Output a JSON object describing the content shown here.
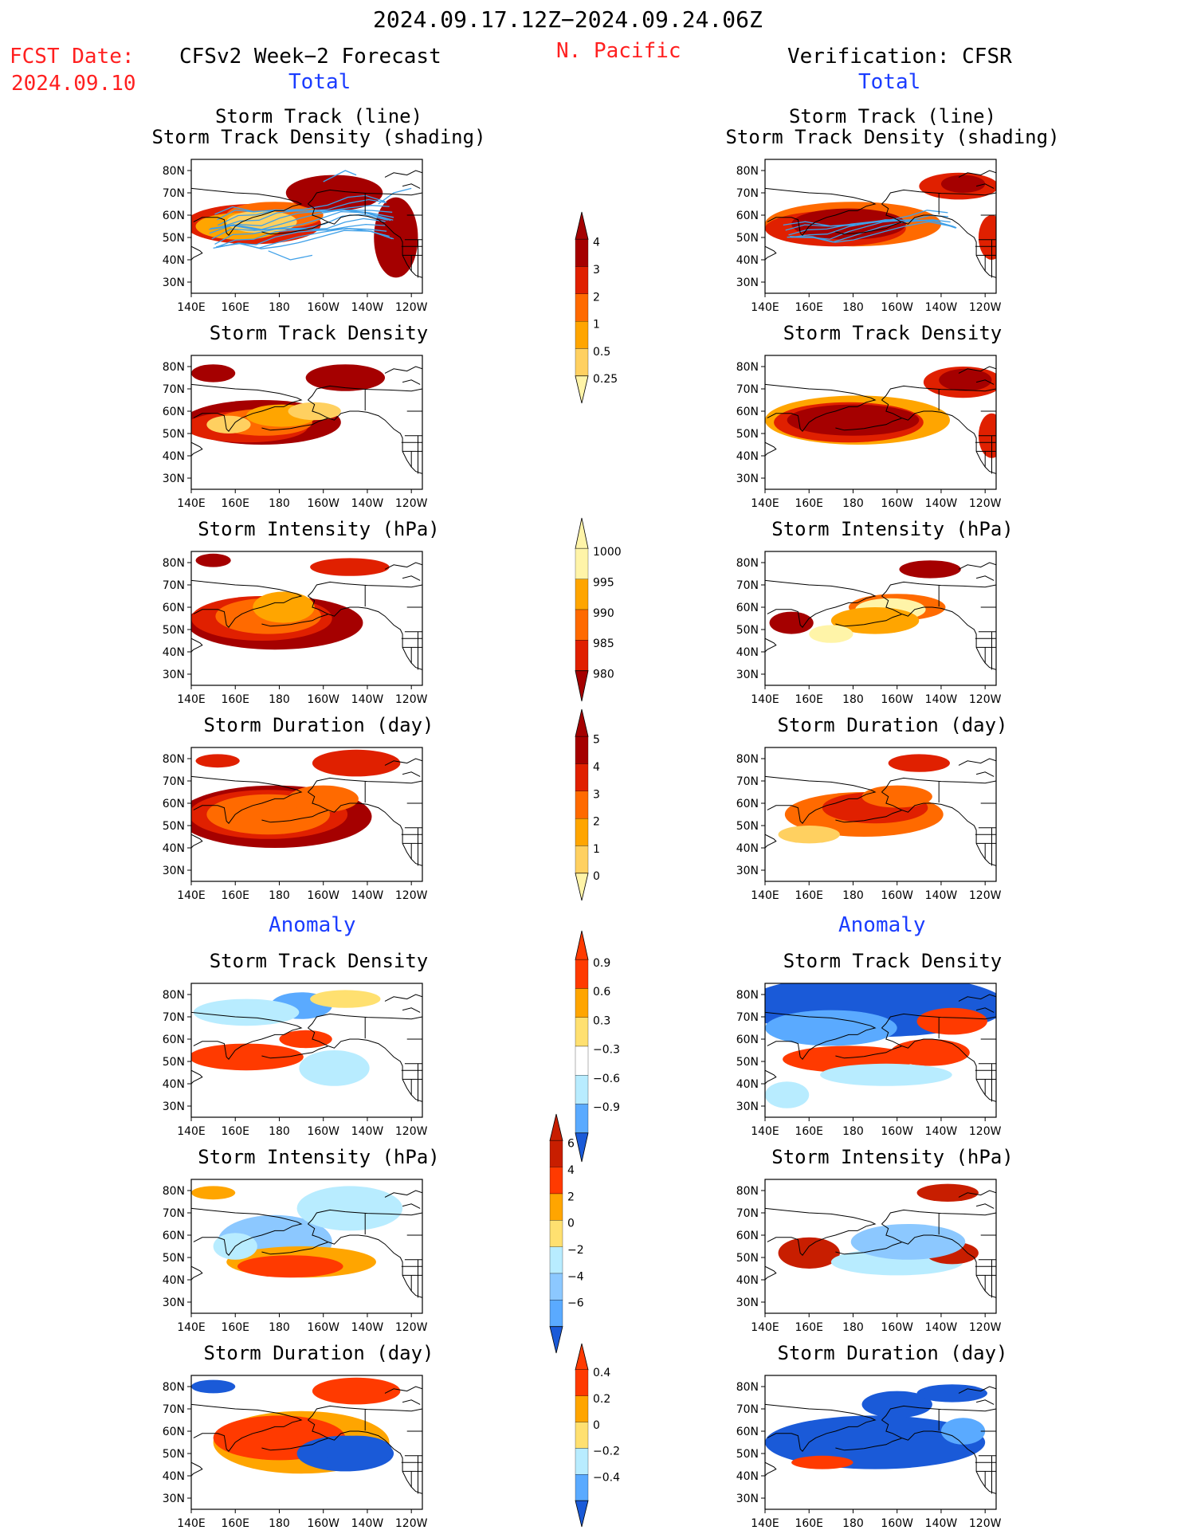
{
  "header": {
    "period": "2024.09.17.12Z−2024.09.24.06Z",
    "fcst_label": "FCST Date:",
    "fcst_date": "2024.09.10",
    "left_title": "CFSv2 Week−2 Forecast",
    "region": "N. Pacific",
    "right_title": "Verification: CFSR",
    "total_label": "Total",
    "anomaly_label": "Anomaly"
  },
  "chart_data": [
    {
      "type": "heatmap",
      "panel": "forecast-total-track-line",
      "title": [
        "Storm Track (line)",
        "Storm Track Density (shading)"
      ],
      "overlay": "storm tracks (lines)",
      "x_ticks": [
        "140E",
        "160E",
        "180",
        "160W",
        "140W",
        "120W"
      ],
      "y_ticks": [
        "30N",
        "40N",
        "50N",
        "60N",
        "70N",
        "80N"
      ],
      "lon_range": [
        140,
        245
      ],
      "lat_range": [
        25,
        85
      ]
    },
    {
      "type": "heatmap",
      "panel": "forecast-total-density",
      "title": [
        "Storm Track Density"
      ],
      "x_ticks": [
        "140E",
        "160E",
        "180",
        "160W",
        "140W",
        "120W"
      ],
      "y_ticks": [
        "30N",
        "40N",
        "50N",
        "60N",
        "70N",
        "80N"
      ]
    },
    {
      "type": "heatmap",
      "panel": "forecast-total-intensity",
      "title": [
        "Storm Intensity (hPa)"
      ],
      "x_ticks": [
        "140E",
        "160E",
        "180",
        "160W",
        "140W",
        "120W"
      ],
      "y_ticks": [
        "30N",
        "40N",
        "50N",
        "60N",
        "70N",
        "80N"
      ]
    },
    {
      "type": "heatmap",
      "panel": "forecast-total-duration",
      "title": [
        "Storm Duration (day)"
      ],
      "x_ticks": [
        "140E",
        "160E",
        "180",
        "160W",
        "140W",
        "120W"
      ],
      "y_ticks": [
        "30N",
        "40N",
        "50N",
        "60N",
        "70N",
        "80N"
      ]
    },
    {
      "type": "heatmap",
      "panel": "forecast-anom-density",
      "title": [
        "Storm Track Density"
      ],
      "x_ticks": [
        "140E",
        "160E",
        "180",
        "160W",
        "140W",
        "120W"
      ],
      "y_ticks": [
        "30N",
        "40N",
        "50N",
        "60N",
        "70N",
        "80N"
      ]
    },
    {
      "type": "heatmap",
      "panel": "forecast-anom-intensity",
      "title": [
        "Storm Intensity (hPa)"
      ],
      "x_ticks": [
        "140E",
        "160E",
        "180",
        "160W",
        "140W",
        "120W"
      ],
      "y_ticks": [
        "30N",
        "40N",
        "50N",
        "60N",
        "70N",
        "80N"
      ]
    },
    {
      "type": "heatmap",
      "panel": "forecast-anom-duration",
      "title": [
        "Storm Duration (day)"
      ],
      "x_ticks": [
        "140E",
        "160E",
        "180",
        "160W",
        "140W",
        "120W"
      ],
      "y_ticks": [
        "30N",
        "40N",
        "50N",
        "60N",
        "70N",
        "80N"
      ]
    },
    {
      "type": "heatmap",
      "panel": "verif-total-track-line",
      "title": [
        "Storm Track (line)",
        "Storm Track Density (shading)"
      ],
      "overlay": "storm tracks (lines)",
      "x_ticks": [
        "140E",
        "160E",
        "180",
        "160W",
        "140W",
        "120W"
      ],
      "y_ticks": [
        "30N",
        "40N",
        "50N",
        "60N",
        "70N",
        "80N"
      ]
    },
    {
      "type": "heatmap",
      "panel": "verif-total-density",
      "title": [
        "Storm Track Density"
      ],
      "x_ticks": [
        "140E",
        "160E",
        "180",
        "160W",
        "140W",
        "120W"
      ],
      "y_ticks": [
        "30N",
        "40N",
        "50N",
        "60N",
        "70N",
        "80N"
      ]
    },
    {
      "type": "heatmap",
      "panel": "verif-total-intensity",
      "title": [
        "Storm Intensity (hPa)"
      ],
      "x_ticks": [
        "140E",
        "160E",
        "180",
        "160W",
        "140W",
        "120W"
      ],
      "y_ticks": [
        "30N",
        "40N",
        "50N",
        "60N",
        "70N",
        "80N"
      ]
    },
    {
      "type": "heatmap",
      "panel": "verif-total-duration",
      "title": [
        "Storm Duration (day)"
      ],
      "x_ticks": [
        "140E",
        "160E",
        "180",
        "160W",
        "140W",
        "120W"
      ],
      "y_ticks": [
        "30N",
        "40N",
        "50N",
        "60N",
        "70N",
        "80N"
      ]
    },
    {
      "type": "heatmap",
      "panel": "verif-anom-density",
      "title": [
        "Storm Track Density"
      ],
      "x_ticks": [
        "140E",
        "160E",
        "180",
        "160W",
        "140W",
        "120W"
      ],
      "y_ticks": [
        "30N",
        "40N",
        "50N",
        "60N",
        "70N",
        "80N"
      ]
    },
    {
      "type": "heatmap",
      "panel": "verif-anom-intensity",
      "title": [
        "Storm Intensity (hPa)"
      ],
      "x_ticks": [
        "140E",
        "160E",
        "180",
        "160W",
        "140W",
        "120W"
      ],
      "y_ticks": [
        "30N",
        "40N",
        "50N",
        "60N",
        "70N",
        "80N"
      ]
    },
    {
      "type": "heatmap",
      "panel": "verif-anom-duration",
      "title": [
        "Storm Duration (day)"
      ],
      "x_ticks": [
        "140E",
        "160E",
        "180",
        "160W",
        "140W",
        "120W"
      ],
      "y_ticks": [
        "30N",
        "40N",
        "50N",
        "60N",
        "70N",
        "80N"
      ]
    }
  ],
  "colorbars": [
    {
      "name": "density-total",
      "labels": [
        "4",
        "3",
        "2",
        "1",
        "0.5",
        "0.25"
      ],
      "colors": [
        "#a50000",
        "#e02000",
        "#ff6a00",
        "#ffa500",
        "#ffd060",
        "#fff4a8"
      ]
    },
    {
      "name": "intensity-total",
      "labels": [
        "1000",
        "995",
        "990",
        "985",
        "980"
      ],
      "colors": [
        "#fff4a8",
        "#ffa500",
        "#ff6a00",
        "#e02000",
        "#a50000"
      ]
    },
    {
      "name": "duration-total",
      "labels": [
        "5",
        "4",
        "3",
        "2",
        "1",
        "0"
      ],
      "colors": [
        "#a50000",
        "#e02000",
        "#ff6a00",
        "#ffa500",
        "#ffd060",
        "#fff4a8"
      ]
    },
    {
      "name": "density-anom",
      "labels": [
        "0.9",
        "0.6",
        "0.3",
        "−0.3",
        "−0.6",
        "−0.9"
      ],
      "colors": [
        "#ff3a00",
        "#ffa500",
        "#ffe070",
        "#ffffff",
        "#b8ecff",
        "#5aaaff",
        "#1a5ad8"
      ]
    },
    {
      "name": "intensity-anom",
      "labels": [
        "6",
        "4",
        "2",
        "0",
        "−2",
        "−4",
        "−6"
      ],
      "colors": [
        "#c81e00",
        "#ff3a00",
        "#ffa500",
        "#ffe070",
        "#b8ecff",
        "#8cc8ff",
        "#5aaaff",
        "#1a5ad8"
      ]
    },
    {
      "name": "duration-anom",
      "labels": [
        "0.4",
        "0.2",
        "0",
        "−0.2",
        "−0.4"
      ],
      "colors": [
        "#ff3a00",
        "#ffa500",
        "#ffe070",
        "#b8ecff",
        "#5aaaff",
        "#1a5ad8"
      ]
    }
  ],
  "palette": {
    "track_line": "#3fa0e8",
    "coast": "#000000"
  }
}
